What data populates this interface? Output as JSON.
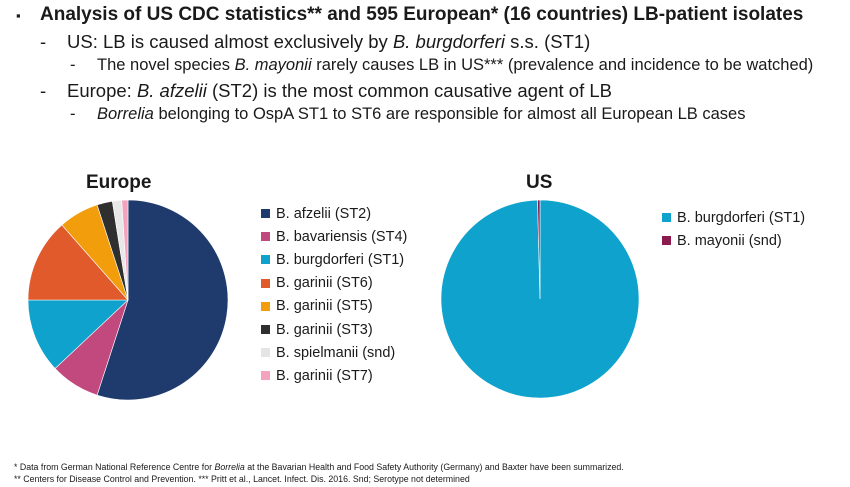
{
  "bullets": [
    {
      "level": 0,
      "marker": "▪",
      "segments": [
        {
          "t": "Analysis of US CDC statistics** and 595 European* (16 countries) LB-patient isolates"
        }
      ]
    },
    {
      "level": 1,
      "marker": "-",
      "segments": [
        {
          "t": "US: LB is caused almost exclusively by "
        },
        {
          "t": "B. burgdorferi",
          "i": true
        },
        {
          "t": " s.s. (ST1)"
        }
      ]
    },
    {
      "level": 2,
      "marker": "-",
      "segments": [
        {
          "t": "The novel species "
        },
        {
          "t": "B. mayonii",
          "i": true
        },
        {
          "t": " rarely causes LB in US*** (prevalence and incidence to be watched)"
        }
      ]
    },
    {
      "level": 1,
      "marker": "-",
      "segments": [
        {
          "t": "Europe: "
        },
        {
          "t": "B. afzelii",
          "i": true
        },
        {
          "t": " (ST2) is the most common causative agent of LB"
        }
      ]
    },
    {
      "level": 2,
      "marker": "-",
      "segments": [
        {
          "t": "Borrelia",
          "i": true
        },
        {
          "t": " belonging to OspA ST1 to ST6 are responsible for almost all European LB cases"
        }
      ]
    }
  ],
  "chart_data": [
    {
      "type": "pie",
      "title": "Europe",
      "legend_position": "right",
      "categories": [
        "B. afzelii (ST2)",
        "B. bavariensis (ST4)",
        "B. burgdorferi (ST1)",
        "B. garinii (ST6)",
        "B. garinii (ST5)",
        "B. garinii (ST3)",
        "B. spielmanii (snd)",
        "B. garinii (ST7)"
      ],
      "values": [
        55,
        8,
        12,
        13.5,
        6.5,
        2.5,
        1.5,
        1
      ],
      "unit": "%",
      "colors": [
        "#1f3b6e",
        "#c2497e",
        "#0ea2cc",
        "#e05a2b",
        "#f29d0c",
        "#2f2f2f",
        "#e8e8e8",
        "#f3a3c0"
      ]
    },
    {
      "type": "pie",
      "title": "US",
      "legend_position": "right",
      "categories": [
        "B. burgdorferi (ST1)",
        "B. mayonii (snd)"
      ],
      "values": [
        99.6,
        0.4
      ],
      "unit": "%",
      "colors": [
        "#0ea2cc",
        "#8b1a4f"
      ]
    }
  ],
  "footnotes": [
    [
      {
        "t": "* Data from German National Reference Centre for "
      },
      {
        "t": "Borrelia",
        "i": true
      },
      {
        "t": " at the Bavarian Health and Food Safety Authority (Germany) and Baxter have been summarized."
      }
    ],
    [
      {
        "t": "** Centers for Disease Control and Prevention. *** Pritt et al., Lancet. Infect. Dis. 2016. Snd; Serotype not determined"
      }
    ]
  ]
}
